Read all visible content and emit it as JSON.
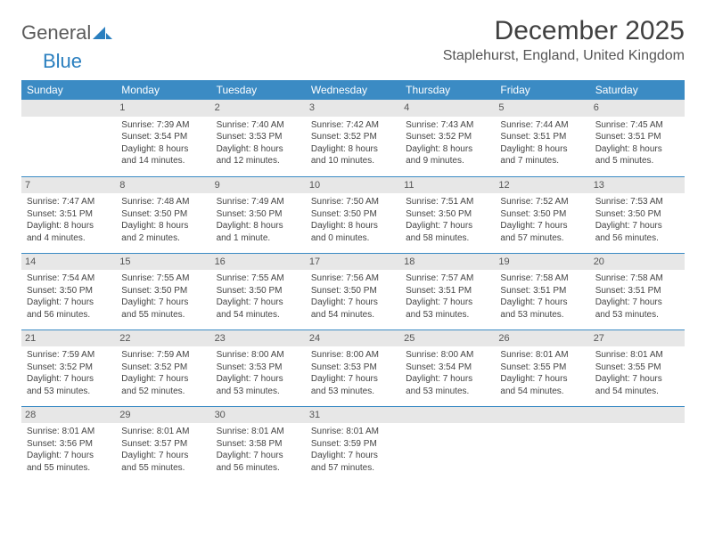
{
  "logo": {
    "part1": "General",
    "part2": "Blue"
  },
  "title": "December 2025",
  "location": "Staplehurst, England, United Kingdom",
  "colors": {
    "header_bg": "#3b8bc4",
    "header_text": "#ffffff",
    "daynum_bg": "#e7e7e7",
    "row_divider": "#3b8bc4",
    "text": "#444444"
  },
  "weekdays": [
    "Sunday",
    "Monday",
    "Tuesday",
    "Wednesday",
    "Thursday",
    "Friday",
    "Saturday"
  ],
  "first_weekday_index": 1,
  "days": [
    {
      "n": 1,
      "sunrise": "7:39 AM",
      "sunset": "3:54 PM",
      "daylight": "8 hours and 14 minutes."
    },
    {
      "n": 2,
      "sunrise": "7:40 AM",
      "sunset": "3:53 PM",
      "daylight": "8 hours and 12 minutes."
    },
    {
      "n": 3,
      "sunrise": "7:42 AM",
      "sunset": "3:52 PM",
      "daylight": "8 hours and 10 minutes."
    },
    {
      "n": 4,
      "sunrise": "7:43 AM",
      "sunset": "3:52 PM",
      "daylight": "8 hours and 9 minutes."
    },
    {
      "n": 5,
      "sunrise": "7:44 AM",
      "sunset": "3:51 PM",
      "daylight": "8 hours and 7 minutes."
    },
    {
      "n": 6,
      "sunrise": "7:45 AM",
      "sunset": "3:51 PM",
      "daylight": "8 hours and 5 minutes."
    },
    {
      "n": 7,
      "sunrise": "7:47 AM",
      "sunset": "3:51 PM",
      "daylight": "8 hours and 4 minutes."
    },
    {
      "n": 8,
      "sunrise": "7:48 AM",
      "sunset": "3:50 PM",
      "daylight": "8 hours and 2 minutes."
    },
    {
      "n": 9,
      "sunrise": "7:49 AM",
      "sunset": "3:50 PM",
      "daylight": "8 hours and 1 minute."
    },
    {
      "n": 10,
      "sunrise": "7:50 AM",
      "sunset": "3:50 PM",
      "daylight": "8 hours and 0 minutes."
    },
    {
      "n": 11,
      "sunrise": "7:51 AM",
      "sunset": "3:50 PM",
      "daylight": "7 hours and 58 minutes."
    },
    {
      "n": 12,
      "sunrise": "7:52 AM",
      "sunset": "3:50 PM",
      "daylight": "7 hours and 57 minutes."
    },
    {
      "n": 13,
      "sunrise": "7:53 AM",
      "sunset": "3:50 PM",
      "daylight": "7 hours and 56 minutes."
    },
    {
      "n": 14,
      "sunrise": "7:54 AM",
      "sunset": "3:50 PM",
      "daylight": "7 hours and 56 minutes."
    },
    {
      "n": 15,
      "sunrise": "7:55 AM",
      "sunset": "3:50 PM",
      "daylight": "7 hours and 55 minutes."
    },
    {
      "n": 16,
      "sunrise": "7:55 AM",
      "sunset": "3:50 PM",
      "daylight": "7 hours and 54 minutes."
    },
    {
      "n": 17,
      "sunrise": "7:56 AM",
      "sunset": "3:50 PM",
      "daylight": "7 hours and 54 minutes."
    },
    {
      "n": 18,
      "sunrise": "7:57 AM",
      "sunset": "3:51 PM",
      "daylight": "7 hours and 53 minutes."
    },
    {
      "n": 19,
      "sunrise": "7:58 AM",
      "sunset": "3:51 PM",
      "daylight": "7 hours and 53 minutes."
    },
    {
      "n": 20,
      "sunrise": "7:58 AM",
      "sunset": "3:51 PM",
      "daylight": "7 hours and 53 minutes."
    },
    {
      "n": 21,
      "sunrise": "7:59 AM",
      "sunset": "3:52 PM",
      "daylight": "7 hours and 53 minutes."
    },
    {
      "n": 22,
      "sunrise": "7:59 AM",
      "sunset": "3:52 PM",
      "daylight": "7 hours and 52 minutes."
    },
    {
      "n": 23,
      "sunrise": "8:00 AM",
      "sunset": "3:53 PM",
      "daylight": "7 hours and 53 minutes."
    },
    {
      "n": 24,
      "sunrise": "8:00 AM",
      "sunset": "3:53 PM",
      "daylight": "7 hours and 53 minutes."
    },
    {
      "n": 25,
      "sunrise": "8:00 AM",
      "sunset": "3:54 PM",
      "daylight": "7 hours and 53 minutes."
    },
    {
      "n": 26,
      "sunrise": "8:01 AM",
      "sunset": "3:55 PM",
      "daylight": "7 hours and 54 minutes."
    },
    {
      "n": 27,
      "sunrise": "8:01 AM",
      "sunset": "3:55 PM",
      "daylight": "7 hours and 54 minutes."
    },
    {
      "n": 28,
      "sunrise": "8:01 AM",
      "sunset": "3:56 PM",
      "daylight": "7 hours and 55 minutes."
    },
    {
      "n": 29,
      "sunrise": "8:01 AM",
      "sunset": "3:57 PM",
      "daylight": "7 hours and 55 minutes."
    },
    {
      "n": 30,
      "sunrise": "8:01 AM",
      "sunset": "3:58 PM",
      "daylight": "7 hours and 56 minutes."
    },
    {
      "n": 31,
      "sunrise": "8:01 AM",
      "sunset": "3:59 PM",
      "daylight": "7 hours and 57 minutes."
    }
  ],
  "labels": {
    "sunrise": "Sunrise: ",
    "sunset": "Sunset: ",
    "daylight": "Daylight: "
  }
}
